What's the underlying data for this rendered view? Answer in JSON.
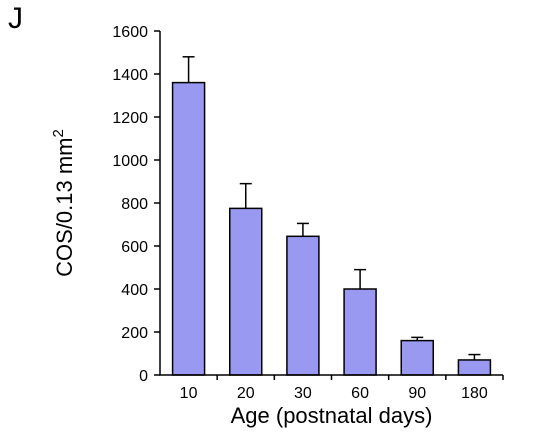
{
  "panel_label": "J",
  "chart_data": {
    "type": "bar",
    "categories": [
      "10",
      "20",
      "30",
      "60",
      "90",
      "180"
    ],
    "values": [
      1360,
      775,
      645,
      400,
      160,
      70
    ],
    "errors": [
      120,
      115,
      60,
      90,
      15,
      25
    ],
    "xlabel": "Age (postnatal days)",
    "ylabel_main": "COS/0.13 mm",
    "ylabel_sup": "2",
    "ylim": [
      0,
      1600
    ],
    "yticks": [
      0,
      200,
      400,
      600,
      800,
      1000,
      1200,
      1400,
      1600
    ],
    "bar_color": "#9999f2",
    "grid": false
  }
}
